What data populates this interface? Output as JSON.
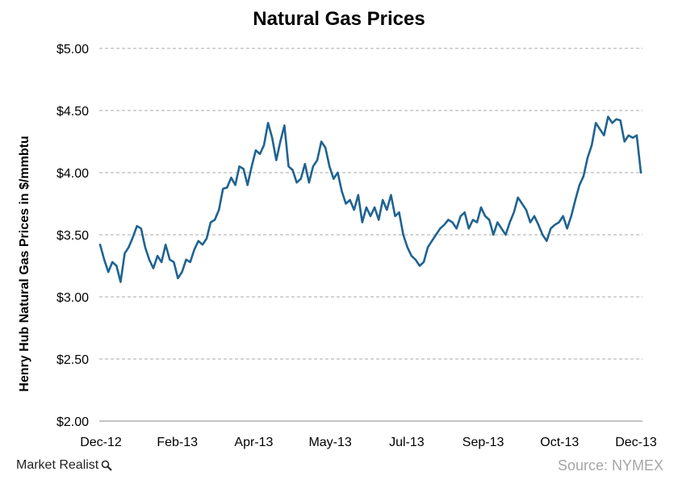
{
  "brand": {
    "name": "Market Realist"
  },
  "source": "Source: NYMEX",
  "chart_data": {
    "type": "line",
    "title": "Natural Gas Prices",
    "xlabel": "",
    "ylabel": "Henry Hub Natural Gas Prices in $/mmbtu",
    "ylim": [
      2.0,
      5.0
    ],
    "y_ticks": [
      2.0,
      2.5,
      3.0,
      3.5,
      4.0,
      4.5,
      5.0
    ],
    "y_tick_labels": [
      "$2.00",
      "$2.50",
      "$3.00",
      "$3.50",
      "$4.00",
      "$4.50",
      "$5.00"
    ],
    "x_tick_labels": [
      "Dec-12",
      "Feb-13",
      "Apr-13",
      "May-13",
      "Jul-13",
      "Sep-13",
      "Oct-13",
      "Dec-13"
    ],
    "grid": true,
    "line_color": "#1f6391",
    "series": [
      {
        "name": "",
        "values": [
          3.42,
          3.3,
          3.2,
          3.28,
          3.25,
          3.12,
          3.35,
          3.4,
          3.48,
          3.57,
          3.55,
          3.4,
          3.3,
          3.23,
          3.33,
          3.28,
          3.42,
          3.3,
          3.28,
          3.15,
          3.2,
          3.3,
          3.28,
          3.38,
          3.45,
          3.42,
          3.47,
          3.6,
          3.62,
          3.7,
          3.87,
          3.88,
          3.96,
          3.9,
          4.05,
          4.03,
          3.9,
          4.05,
          4.18,
          4.15,
          4.22,
          4.4,
          4.28,
          4.1,
          4.25,
          4.38,
          4.05,
          4.02,
          3.92,
          3.95,
          4.07,
          3.92,
          4.05,
          4.1,
          4.25,
          4.2,
          4.05,
          3.95,
          4.0,
          3.85,
          3.75,
          3.78,
          3.7,
          3.82,
          3.6,
          3.72,
          3.65,
          3.72,
          3.62,
          3.78,
          3.7,
          3.82,
          3.65,
          3.68,
          3.5,
          3.4,
          3.33,
          3.3,
          3.25,
          3.28,
          3.4,
          3.45,
          3.5,
          3.55,
          3.58,
          3.62,
          3.6,
          3.55,
          3.65,
          3.68,
          3.55,
          3.62,
          3.6,
          3.72,
          3.65,
          3.62,
          3.5,
          3.6,
          3.55,
          3.5,
          3.6,
          3.68,
          3.8,
          3.75,
          3.7,
          3.6,
          3.65,
          3.58,
          3.5,
          3.45,
          3.55,
          3.58,
          3.6,
          3.65,
          3.55,
          3.65,
          3.78,
          3.9,
          3.97,
          4.12,
          4.22,
          4.4,
          4.35,
          4.3,
          4.45,
          4.4,
          4.43,
          4.42,
          4.25,
          4.3,
          4.28,
          4.3,
          4.0
        ]
      }
    ]
  }
}
